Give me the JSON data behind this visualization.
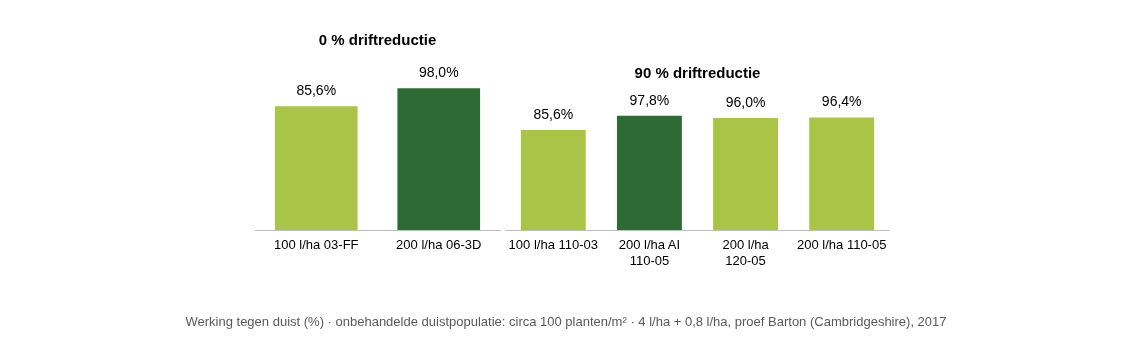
{
  "chart_data": [
    {
      "type": "bar",
      "title": "0 % driftreductie",
      "categories": [
        "100 l/ha 03-FF",
        "200 l/ha 06-3D"
      ],
      "values": [
        85.6,
        98.0
      ],
      "colors": [
        "#a9c447",
        "#2e6b34"
      ],
      "value_labels": [
        "85,6%",
        "98,0%"
      ],
      "legend": false,
      "grid": false
    },
    {
      "type": "bar",
      "title": "90 % driftreductie",
      "categories": [
        "100 l/ha 110-03",
        "200 l/ha AI 110-05",
        "200 l/ha 120-05",
        "200 l/ha 110-05"
      ],
      "values": [
        85.6,
        97.8,
        96.0,
        96.4
      ],
      "colors": [
        "#a9c447",
        "#2e6b34",
        "#a9c447",
        "#a9c447"
      ],
      "value_labels": [
        "85,6%",
        "97,8%",
        "96,0%",
        "96,4%"
      ],
      "legend": false,
      "grid": false,
      "annotations": [
        "Werking tegen duist (%) · onbehandelde duistpopulatie: circa 100 planten/m² · 4 l/ha + 0,8 l/ha, proef Barton (Cambridgeshire), 2017"
      ]
    }
  ]
}
